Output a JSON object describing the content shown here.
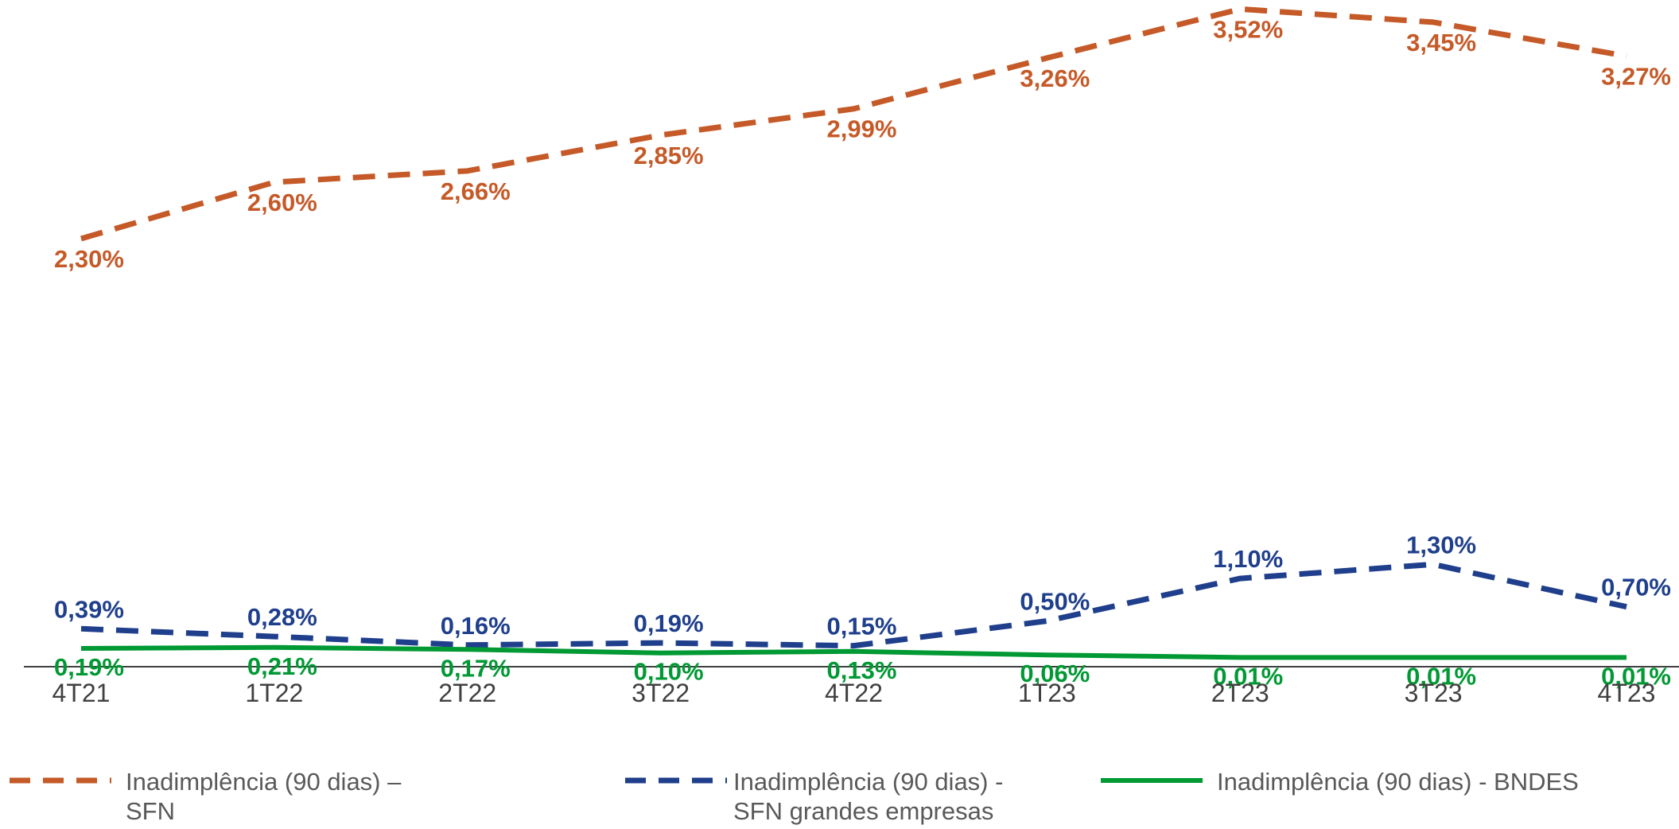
{
  "chart_data": {
    "type": "line",
    "categories": [
      "4T21",
      "1T22",
      "2T22",
      "3T22",
      "4T22",
      "1T23",
      "2T23",
      "3T23",
      "4T23"
    ],
    "series": [
      {
        "name": "Inadimplência (90 dias) – SFN",
        "legend_lines": [
          "Inadimplência (90 dias) –",
          "SFN"
        ],
        "values": [
          2.3,
          2.6,
          2.66,
          2.85,
          2.99,
          3.26,
          3.52,
          3.45,
          3.27
        ],
        "labels": [
          "2,30%",
          "2,60%",
          "2,66%",
          "2,85%",
          "2,99%",
          "3,26%",
          "3,52%",
          "3,45%",
          "3,27%"
        ],
        "color": "#C55A28",
        "line_style": "dashed"
      },
      {
        "name": "Inadimplência (90 dias) - SFN grandes empresas",
        "legend_lines": [
          "Inadimplência (90 dias) -",
          "SFN grandes empresas"
        ],
        "values": [
          0.39,
          0.28,
          0.16,
          0.19,
          0.15,
          0.5,
          1.1,
          1.3,
          0.7
        ],
        "labels": [
          "0,39%",
          "0,28%",
          "0,16%",
          "0,19%",
          "0,15%",
          "0,50%",
          "1,10%",
          "1,30%",
          "0,70%"
        ],
        "color": "#1F3F8C",
        "line_style": "dashed"
      },
      {
        "name": "Inadimplência (90 dias) - BNDES",
        "legend_lines": [
          "Inadimplência (90 dias) - BNDES"
        ],
        "values": [
          0.19,
          0.21,
          0.17,
          0.1,
          0.13,
          0.06,
          0.01,
          0.01,
          0.01
        ],
        "labels": [
          "0,19%",
          "0,21%",
          "0,17%",
          "0,10%",
          "0,13%",
          "0,06%",
          "0,01%",
          "0,01%",
          "0,01%"
        ],
        "color": "#009933",
        "line_style": "solid"
      }
    ],
    "title": "",
    "xlabel": "",
    "ylabel": "",
    "y_axis_visible": false,
    "grid": false,
    "legend_position": "bottom"
  }
}
